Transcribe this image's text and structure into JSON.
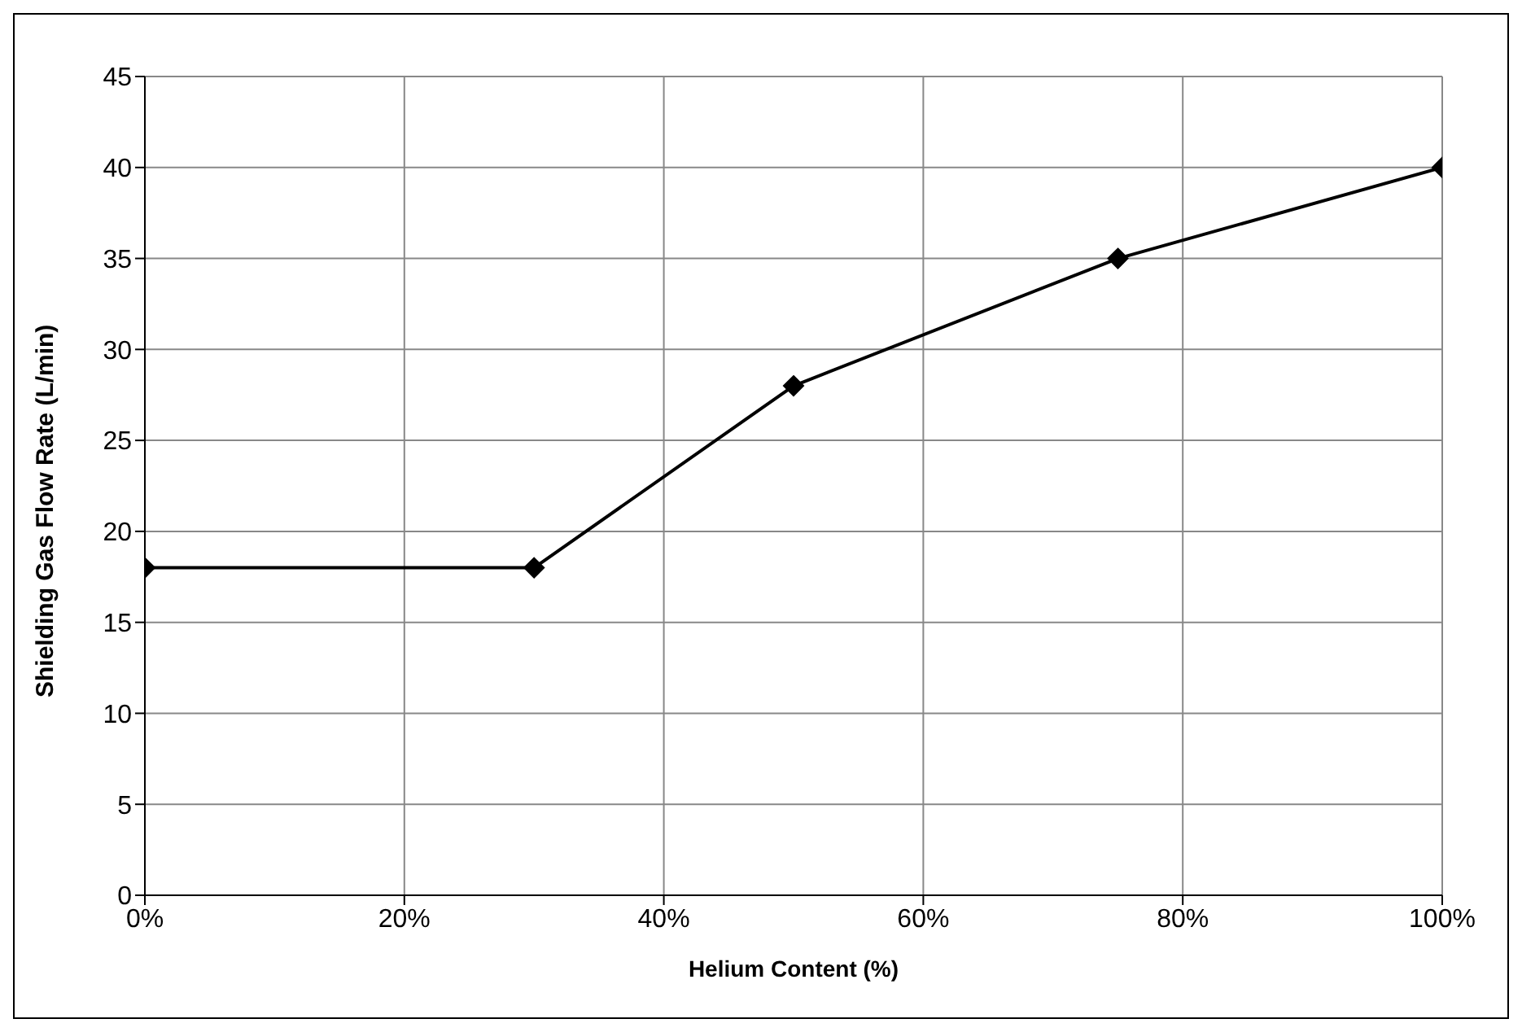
{
  "chart_data": {
    "type": "line",
    "xlabel": "Helium Content (%)",
    "ylabel": "Shielding Gas Flow Rate (L/min)",
    "x": [
      0,
      30,
      50,
      75,
      100
    ],
    "series": [
      {
        "color": "#000000",
        "values": [
          18,
          18,
          28,
          35,
          40
        ]
      }
    ],
    "xlim": [
      0,
      100
    ],
    "xticks": [
      {
        "value": 0,
        "label": "0%"
      },
      {
        "value": 20,
        "label": "20%"
      },
      {
        "value": 40,
        "label": "40%"
      },
      {
        "value": 60,
        "label": "60%"
      },
      {
        "value": 80,
        "label": "80%"
      },
      {
        "value": 100,
        "label": "100%"
      }
    ],
    "ylim": [
      0,
      45
    ],
    "yticks": [
      0,
      5,
      10,
      15,
      20,
      25,
      30,
      35,
      40,
      45
    ],
    "grid": true,
    "legend": false,
    "marker": "diamond",
    "line_style": "solid"
  }
}
